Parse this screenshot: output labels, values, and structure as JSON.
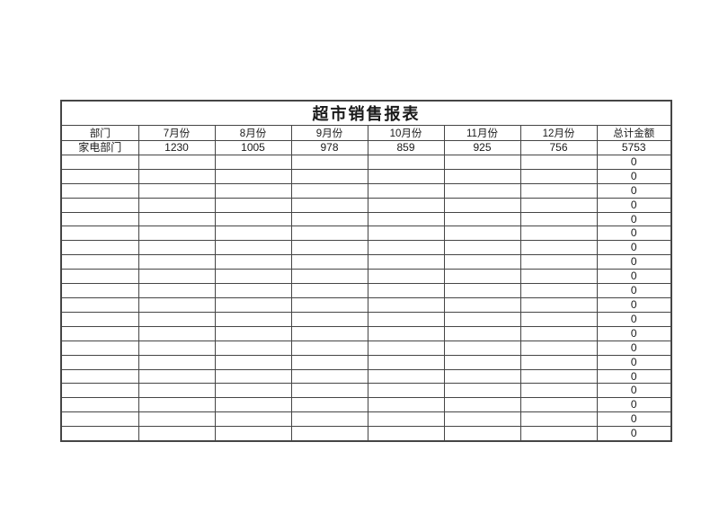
{
  "report": {
    "title": "超市销售报表",
    "columns": [
      "部门",
      "7月份",
      "8月份",
      "9月份",
      "10月份",
      "11月份",
      "12月份",
      "总计金额"
    ],
    "rows": [
      [
        "家电部门",
        "1230",
        "1005",
        "978",
        "859",
        "925",
        "756",
        "5753"
      ],
      [
        "",
        "",
        "",
        "",
        "",
        "",
        "",
        "0"
      ],
      [
        "",
        "",
        "",
        "",
        "",
        "",
        "",
        "0"
      ],
      [
        "",
        "",
        "",
        "",
        "",
        "",
        "",
        "0"
      ],
      [
        "",
        "",
        "",
        "",
        "",
        "",
        "",
        "0"
      ],
      [
        "",
        "",
        "",
        "",
        "",
        "",
        "",
        "0"
      ],
      [
        "",
        "",
        "",
        "",
        "",
        "",
        "",
        "0"
      ],
      [
        "",
        "",
        "",
        "",
        "",
        "",
        "",
        "0"
      ],
      [
        "",
        "",
        "",
        "",
        "",
        "",
        "",
        "0"
      ],
      [
        "",
        "",
        "",
        "",
        "",
        "",
        "",
        "0"
      ],
      [
        "",
        "",
        "",
        "",
        "",
        "",
        "",
        "0"
      ],
      [
        "",
        "",
        "",
        "",
        "",
        "",
        "",
        "0"
      ],
      [
        "",
        "",
        "",
        "",
        "",
        "",
        "",
        "0"
      ],
      [
        "",
        "",
        "",
        "",
        "",
        "",
        "",
        "0"
      ],
      [
        "",
        "",
        "",
        "",
        "",
        "",
        "",
        "0"
      ],
      [
        "",
        "",
        "",
        "",
        "",
        "",
        "",
        "0"
      ],
      [
        "",
        "",
        "",
        "",
        "",
        "",
        "",
        "0"
      ],
      [
        "",
        "",
        "",
        "",
        "",
        "",
        "",
        "0"
      ],
      [
        "",
        "",
        "",
        "",
        "",
        "",
        "",
        "0"
      ],
      [
        "",
        "",
        "",
        "",
        "",
        "",
        "",
        "0"
      ],
      [
        "",
        "",
        "",
        "",
        "",
        "",
        "",
        "0"
      ]
    ]
  },
  "colors": {
    "title_bg": "#FFD45F",
    "title_text": "#EE3512",
    "grid_border": "#454545",
    "cell_bg": "#FFFFFF",
    "text": "#1A1A1A"
  }
}
